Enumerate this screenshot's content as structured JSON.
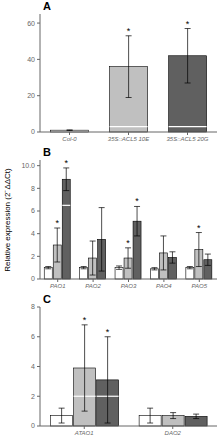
{
  "chart_data": [
    {
      "type": "bar",
      "title": "A",
      "categories": [
        "Col-0",
        "35S::ACL5 10E",
        "35S::ACL5 20G"
      ],
      "series": [
        {
          "colors": [
            "#ffffff",
            "#c0c0c0",
            "#606060"
          ],
          "values": [
            1.0,
            36.0,
            42.0
          ],
          "errors": [
            0.15,
            17.0,
            15.0
          ],
          "annotations": [
            null,
            "*",
            "*"
          ],
          "hlines": [
            null,
            3.0,
            3.0
          ]
        }
      ],
      "ylim": [
        0,
        65
      ],
      "yticks": [
        0,
        20,
        40,
        60
      ],
      "grid": false
    },
    {
      "type": "bar",
      "title": "B",
      "ylabel": "Relative expression (2⁻ΔΔCt)",
      "categories": [
        "PAO1",
        "PAO2",
        "PAO3",
        "PAO4",
        "PAO5"
      ],
      "series": [
        {
          "color": "#ffffff",
          "values": [
            1.0,
            1.0,
            1.0,
            0.9,
            1.0
          ],
          "errors": [
            0.1,
            0.1,
            0.15,
            0.1,
            0.1
          ],
          "annotations": [
            null,
            null,
            null,
            null,
            null
          ],
          "hlines": [
            null,
            null,
            null,
            null,
            null
          ]
        },
        {
          "color": "#c0c0c0",
          "values": [
            3.0,
            1.85,
            1.85,
            2.3,
            2.6
          ],
          "errors": [
            1.5,
            1.5,
            0.9,
            1.5,
            1.5
          ],
          "annotations": [
            "*",
            null,
            "*",
            null,
            "*"
          ],
          "hlines": [
            null,
            null,
            null,
            null,
            null
          ]
        },
        {
          "color": "#606060",
          "values": [
            8.8,
            3.5,
            5.1,
            1.9,
            1.7
          ],
          "errors": [
            1.0,
            2.8,
            1.3,
            0.5,
            0.5
          ],
          "annotations": [
            "*",
            null,
            "*",
            null,
            null
          ],
          "hlines": [
            6.5,
            null,
            null,
            null,
            null
          ]
        }
      ],
      "ylim": [
        0,
        10.5
      ],
      "yticks": [
        0,
        2,
        4,
        6,
        8,
        {
          "value": 10,
          "label": "10.0"
        }
      ],
      "grid": false
    },
    {
      "type": "bar",
      "title": "C",
      "categories": [
        "ATAO1",
        "DAO2"
      ],
      "series": [
        {
          "color": "#ffffff",
          "values": [
            0.7,
            0.7
          ],
          "errors": [
            0.5,
            0.5
          ],
          "annotations": [
            null,
            null
          ],
          "hlines": [
            null,
            null
          ]
        },
        {
          "color": "#c0c0c0",
          "values": [
            3.9,
            0.7
          ],
          "errors": [
            2.9,
            0.2
          ],
          "annotations": [
            "*",
            null
          ],
          "hlines": [
            2.0,
            null
          ]
        },
        {
          "color": "#606060",
          "values": [
            3.1,
            0.65
          ],
          "errors": [
            2.9,
            0.15
          ],
          "annotations": [
            "*",
            null
          ],
          "hlines": [
            2.0,
            null
          ]
        }
      ],
      "ylim": [
        0,
        8
      ],
      "yticks": [
        0,
        2,
        4,
        6,
        8
      ],
      "grid": false
    }
  ]
}
